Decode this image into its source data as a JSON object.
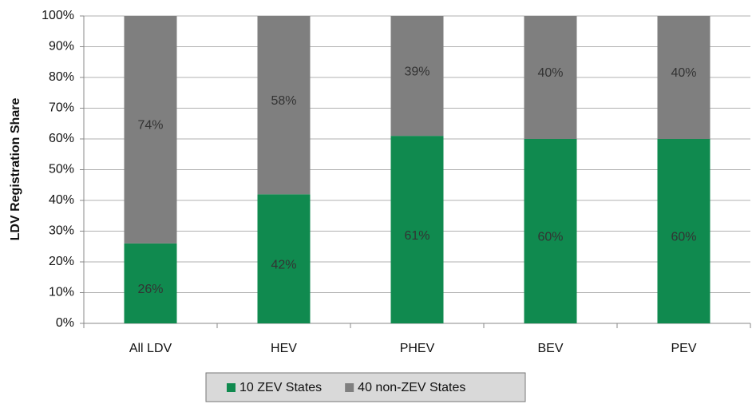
{
  "chart_data": {
    "type": "stacked_bar",
    "y_label": "LDV Registration Share",
    "categories": [
      "All LDV",
      "HEV",
      "PHEV",
      "BEV",
      "PEV"
    ],
    "series": [
      {
        "name": "10 ZEV States",
        "color": "#108a4f",
        "values": [
          26,
          42,
          61,
          60,
          60
        ],
        "value_labels": [
          "26%",
          "42%",
          "61%",
          "60%",
          "60%"
        ]
      },
      {
        "name": "40 non-ZEV States",
        "color": "#7f7f7f",
        "values": [
          74,
          58,
          39,
          40,
          40
        ],
        "value_labels": [
          "74%",
          "58%",
          "39%",
          "40%",
          "40%"
        ]
      }
    ],
    "ylim": [
      0,
      100
    ],
    "yticks": [
      {
        "value": 0,
        "label": "0%"
      },
      {
        "value": 10,
        "label": "10%"
      },
      {
        "value": 20,
        "label": "20%"
      },
      {
        "value": 30,
        "label": "30%"
      },
      {
        "value": 40,
        "label": "40%"
      },
      {
        "value": 50,
        "label": "50%"
      },
      {
        "value": 60,
        "label": "60%"
      },
      {
        "value": 70,
        "label": "70%"
      },
      {
        "value": 80,
        "label": "80%"
      },
      {
        "value": 90,
        "label": "90%"
      },
      {
        "value": 100,
        "label": "100%"
      }
    ],
    "grid": true,
    "legend": "bottom"
  }
}
